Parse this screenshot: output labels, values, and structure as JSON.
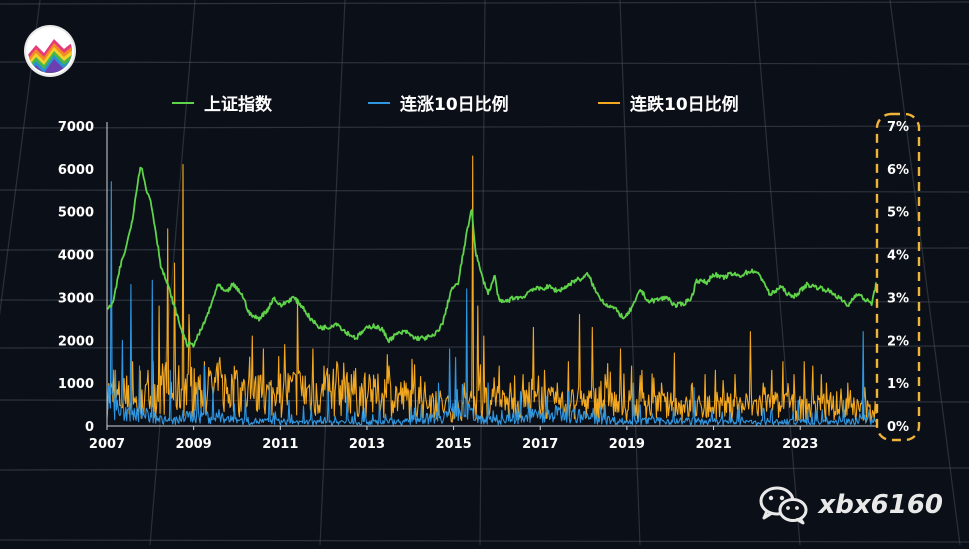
{
  "colors": {
    "background": "#0b0f17",
    "index_line": "#5fd34a",
    "up10_line": "#2f96e0",
    "down10_line": "#f3a81f",
    "highlight_box": "#f0b43a",
    "grid": "#4a505c"
  },
  "icons": {
    "logo": "mountain-stripes-logo-icon",
    "wechat": "wechat-icon"
  },
  "watermark": {
    "text": "xbx6160"
  },
  "chart_data": {
    "type": "line",
    "title": "",
    "legend": {
      "position": "top-center",
      "entries": [
        "上证指数",
        "连涨10日比例",
        "连跌10日比例"
      ]
    },
    "x_ticks": [
      "2007",
      "2009",
      "2011",
      "2013",
      "2015",
      "2017",
      "2019",
      "2021",
      "2023"
    ],
    "xlim": [
      2007.0,
      2024.75
    ],
    "left_axis": {
      "ticks": [
        "0",
        "1000",
        "2000",
        "3000",
        "4000",
        "5000",
        "6000",
        "7000"
      ],
      "range": [
        0,
        7000
      ]
    },
    "right_axis": {
      "ticks": [
        "0%",
        "1%",
        "2%",
        "3%",
        "4%",
        "5%",
        "6%",
        "7%"
      ],
      "range": [
        0,
        7
      ],
      "highlighted": true
    },
    "grid": true,
    "series": [
      {
        "name": "上证指数",
        "axis": "left",
        "color": "#5fd34a",
        "points": [
          [
            2007.0,
            2700
          ],
          [
            2007.15,
            2900
          ],
          [
            2007.3,
            3700
          ],
          [
            2007.45,
            4200
          ],
          [
            2007.6,
            4900
          ],
          [
            2007.72,
            5800
          ],
          [
            2007.8,
            6100
          ],
          [
            2007.9,
            5500
          ],
          [
            2008.0,
            5300
          ],
          [
            2008.1,
            4700
          ],
          [
            2008.25,
            3700
          ],
          [
            2008.4,
            3300
          ],
          [
            2008.55,
            2800
          ],
          [
            2008.7,
            2300
          ],
          [
            2008.85,
            1900
          ],
          [
            2009.0,
            1900
          ],
          [
            2009.2,
            2300
          ],
          [
            2009.4,
            2800
          ],
          [
            2009.55,
            3300
          ],
          [
            2009.75,
            3100
          ],
          [
            2009.9,
            3300
          ],
          [
            2010.1,
            3100
          ],
          [
            2010.3,
            2600
          ],
          [
            2010.5,
            2500
          ],
          [
            2010.7,
            2700
          ],
          [
            2010.85,
            3000
          ],
          [
            2011.0,
            2800
          ],
          [
            2011.15,
            2900
          ],
          [
            2011.3,
            3000
          ],
          [
            2011.5,
            2800
          ],
          [
            2011.7,
            2500
          ],
          [
            2011.9,
            2300
          ],
          [
            2012.1,
            2300
          ],
          [
            2012.3,
            2400
          ],
          [
            2012.5,
            2200
          ],
          [
            2012.75,
            2050
          ],
          [
            2012.95,
            2250
          ],
          [
            2013.15,
            2350
          ],
          [
            2013.35,
            2250
          ],
          [
            2013.5,
            2000
          ],
          [
            2013.7,
            2150
          ],
          [
            2013.9,
            2200
          ],
          [
            2014.1,
            2050
          ],
          [
            2014.3,
            2050
          ],
          [
            2014.55,
            2100
          ],
          [
            2014.75,
            2400
          ],
          [
            2014.95,
            3200
          ],
          [
            2015.1,
            3300
          ],
          [
            2015.25,
            4200
          ],
          [
            2015.42,
            5100
          ],
          [
            2015.5,
            4100
          ],
          [
            2015.65,
            3500
          ],
          [
            2015.8,
            3100
          ],
          [
            2015.95,
            3500
          ],
          [
            2016.05,
            2900
          ],
          [
            2016.2,
            2900
          ],
          [
            2016.4,
            3000
          ],
          [
            2016.6,
            3000
          ],
          [
            2016.8,
            3200
          ],
          [
            2017.0,
            3200
          ],
          [
            2017.2,
            3250
          ],
          [
            2017.4,
            3150
          ],
          [
            2017.6,
            3250
          ],
          [
            2017.8,
            3400
          ],
          [
            2018.0,
            3450
          ],
          [
            2018.1,
            3550
          ],
          [
            2018.3,
            3100
          ],
          [
            2018.5,
            2850
          ],
          [
            2018.7,
            2750
          ],
          [
            2018.95,
            2500
          ],
          [
            2019.2,
            2900
          ],
          [
            2019.3,
            3200
          ],
          [
            2019.5,
            2900
          ],
          [
            2019.7,
            2950
          ],
          [
            2019.95,
            3000
          ],
          [
            2020.1,
            2800
          ],
          [
            2020.3,
            2850
          ],
          [
            2020.5,
            3000
          ],
          [
            2020.6,
            3400
          ],
          [
            2020.85,
            3350
          ],
          [
            2021.0,
            3550
          ],
          [
            2021.2,
            3450
          ],
          [
            2021.4,
            3550
          ],
          [
            2021.6,
            3500
          ],
          [
            2021.8,
            3600
          ],
          [
            2021.95,
            3620
          ],
          [
            2022.15,
            3400
          ],
          [
            2022.3,
            3050
          ],
          [
            2022.55,
            3250
          ],
          [
            2022.8,
            3000
          ],
          [
            2022.95,
            3100
          ],
          [
            2023.15,
            3300
          ],
          [
            2023.35,
            3250
          ],
          [
            2023.55,
            3200
          ],
          [
            2023.75,
            3100
          ],
          [
            2023.95,
            2950
          ],
          [
            2024.1,
            2800
          ],
          [
            2024.3,
            3100
          ],
          [
            2024.5,
            2950
          ],
          [
            2024.65,
            2850
          ],
          [
            2024.75,
            3300
          ]
        ]
      },
      {
        "name": "连涨10日比例",
        "axis": "right",
        "color": "#2f96e0",
        "baseline_points": [
          [
            2007.0,
            0.6
          ],
          [
            2007.3,
            0.35
          ],
          [
            2007.6,
            0.3
          ],
          [
            2008.0,
            0.2
          ],
          [
            2008.5,
            0.1
          ],
          [
            2009.0,
            0.25
          ],
          [
            2009.5,
            0.2
          ],
          [
            2010.0,
            0.12
          ],
          [
            2011.0,
            0.1
          ],
          [
            2012.0,
            0.08
          ],
          [
            2013.0,
            0.1
          ],
          [
            2014.0,
            0.1
          ],
          [
            2014.8,
            0.25
          ],
          [
            2015.2,
            0.4
          ],
          [
            2015.5,
            0.2
          ],
          [
            2016.0,
            0.1
          ],
          [
            2016.5,
            0.2
          ],
          [
            2017.0,
            0.25
          ],
          [
            2017.6,
            0.3
          ],
          [
            2018.0,
            0.2
          ],
          [
            2019.0,
            0.1
          ],
          [
            2020.0,
            0.12
          ],
          [
            2021.0,
            0.1
          ],
          [
            2022.0,
            0.08
          ],
          [
            2023.0,
            0.1
          ],
          [
            2024.0,
            0.1
          ],
          [
            2024.75,
            0.15
          ]
        ],
        "spikes": [
          [
            2007.1,
            5.7
          ],
          [
            2007.2,
            1.3
          ],
          [
            2007.35,
            2.0
          ],
          [
            2007.55,
            3.3
          ],
          [
            2007.75,
            1.4
          ],
          [
            2008.05,
            3.4
          ],
          [
            2008.45,
            1.3
          ],
          [
            2009.1,
            1.0
          ],
          [
            2009.25,
            1.4
          ],
          [
            2009.45,
            0.9
          ],
          [
            2010.2,
            0.7
          ],
          [
            2010.75,
            1.0
          ],
          [
            2011.2,
            0.6
          ],
          [
            2012.1,
            0.8
          ],
          [
            2012.55,
            0.7
          ],
          [
            2013.3,
            0.6
          ],
          [
            2014.25,
            0.5
          ],
          [
            2014.65,
            1.0
          ],
          [
            2014.9,
            1.8
          ],
          [
            2015.05,
            1.6
          ],
          [
            2015.3,
            3.2
          ],
          [
            2015.8,
            1.0
          ],
          [
            2016.55,
            0.8
          ],
          [
            2017.15,
            0.7
          ],
          [
            2017.65,
            0.8
          ],
          [
            2018.5,
            0.5
          ],
          [
            2019.15,
            1.0
          ],
          [
            2020.55,
            0.9
          ],
          [
            2021.6,
            0.5
          ],
          [
            2022.95,
            0.6
          ],
          [
            2024.0,
            0.6
          ],
          [
            2024.45,
            2.2
          ]
        ]
      },
      {
        "name": "连跌10日比例",
        "axis": "right",
        "color": "#f3a81f",
        "baseline_points": [
          [
            2007.0,
            0.75
          ],
          [
            2007.4,
            0.6
          ],
          [
            2007.8,
            0.5
          ],
          [
            2008.2,
            0.9
          ],
          [
            2008.6,
            0.85
          ],
          [
            2009.0,
            0.8
          ],
          [
            2009.5,
            0.85
          ],
          [
            2010.0,
            0.8
          ],
          [
            2010.5,
            0.7
          ],
          [
            2011.0,
            0.75
          ],
          [
            2011.5,
            0.85
          ],
          [
            2012.0,
            0.7
          ],
          [
            2012.5,
            0.9
          ],
          [
            2013.0,
            0.65
          ],
          [
            2013.5,
            0.75
          ],
          [
            2014.0,
            0.6
          ],
          [
            2014.5,
            0.6
          ],
          [
            2015.0,
            0.35
          ],
          [
            2015.5,
            0.55
          ],
          [
            2016.0,
            0.5
          ],
          [
            2016.5,
            0.5
          ],
          [
            2017.0,
            0.55
          ],
          [
            2017.5,
            0.5
          ],
          [
            2018.0,
            0.55
          ],
          [
            2018.5,
            0.6
          ],
          [
            2019.0,
            0.4
          ],
          [
            2019.5,
            0.5
          ],
          [
            2020.0,
            0.45
          ],
          [
            2020.5,
            0.4
          ],
          [
            2021.0,
            0.45
          ],
          [
            2021.5,
            0.45
          ],
          [
            2022.0,
            0.5
          ],
          [
            2022.5,
            0.45
          ],
          [
            2023.0,
            0.4
          ],
          [
            2023.5,
            0.45
          ],
          [
            2024.0,
            0.4
          ],
          [
            2024.75,
            0.35
          ]
        ],
        "spikes": [
          [
            2007.2,
            1.0
          ],
          [
            2007.6,
            1.5
          ],
          [
            2007.95,
            1.3
          ],
          [
            2008.2,
            2.8
          ],
          [
            2008.4,
            4.6
          ],
          [
            2008.55,
            3.8
          ],
          [
            2008.75,
            6.1
          ],
          [
            2008.9,
            2.6
          ],
          [
            2009.25,
            1.5
          ],
          [
            2009.6,
            1.6
          ],
          [
            2010.0,
            1.3
          ],
          [
            2010.35,
            2.1
          ],
          [
            2010.6,
            1.8
          ],
          [
            2011.1,
            1.9
          ],
          [
            2011.4,
            2.9
          ],
          [
            2011.75,
            1.8
          ],
          [
            2012.0,
            1.4
          ],
          [
            2012.3,
            1.5
          ],
          [
            2012.65,
            1.2
          ],
          [
            2013.05,
            1.2
          ],
          [
            2013.5,
            1.4
          ],
          [
            2013.9,
            1.0
          ],
          [
            2014.2,
            0.9
          ],
          [
            2014.6,
            0.8
          ],
          [
            2015.25,
            1.0
          ],
          [
            2015.45,
            6.3
          ],
          [
            2015.55,
            2.8
          ],
          [
            2015.7,
            2.1
          ],
          [
            2016.05,
            1.4
          ],
          [
            2016.3,
            1.0
          ],
          [
            2016.6,
            1.2
          ],
          [
            2016.85,
            2.3
          ],
          [
            2017.1,
            1.3
          ],
          [
            2017.4,
            1.0
          ],
          [
            2017.65,
            1.5
          ],
          [
            2017.9,
            2.6
          ],
          [
            2018.2,
            2.3
          ],
          [
            2018.5,
            1.2
          ],
          [
            2018.85,
            1.8
          ],
          [
            2019.1,
            1.4
          ],
          [
            2019.35,
            1.3
          ],
          [
            2019.8,
            1.0
          ],
          [
            2020.1,
            1.7
          ],
          [
            2020.5,
            1.0
          ],
          [
            2020.8,
            1.2
          ],
          [
            2021.05,
            1.3
          ],
          [
            2021.5,
            1.2
          ],
          [
            2021.85,
            2.2
          ],
          [
            2022.15,
            1.0
          ],
          [
            2022.35,
            1.3
          ],
          [
            2022.6,
            1.5
          ],
          [
            2022.85,
            1.2
          ],
          [
            2023.1,
            1.5
          ],
          [
            2023.3,
            1.4
          ],
          [
            2023.6,
            1.0
          ],
          [
            2023.85,
            0.8
          ],
          [
            2024.1,
            1.0
          ],
          [
            2024.5,
            0.9
          ]
        ]
      }
    ]
  }
}
